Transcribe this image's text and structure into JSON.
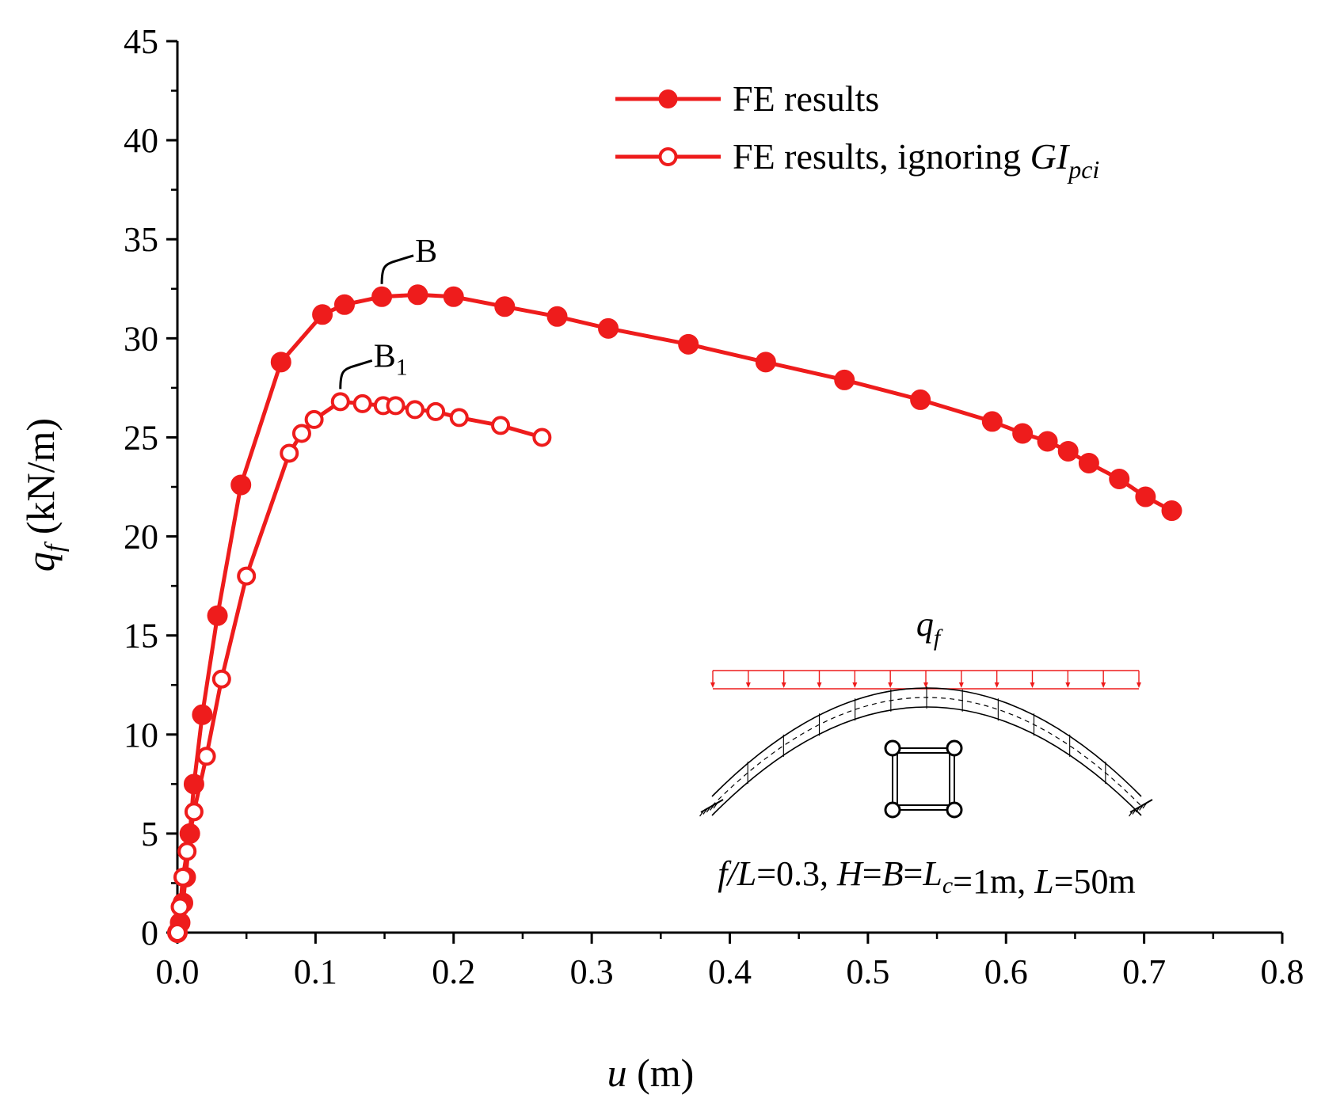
{
  "chart_data": {
    "type": "line",
    "xlabel": {
      "var": "u",
      "unit": " (m)"
    },
    "ylabel": {
      "var": "q",
      "sub": "f",
      "unit": "(kN/m)"
    },
    "xlim": [
      0,
      0.8
    ],
    "ylim": [
      0,
      45
    ],
    "xticks": [
      "0.0",
      "0.1",
      "0.2",
      "0.3",
      "0.4",
      "0.5",
      "0.6",
      "0.7",
      "0.8"
    ],
    "yticks": [
      "0",
      "5",
      "10",
      "15",
      "20",
      "25",
      "30",
      "35",
      "40",
      "45"
    ],
    "xtick_values": [
      0,
      0.1,
      0.2,
      0.3,
      0.4,
      0.5,
      0.6,
      0.7,
      0.8
    ],
    "ytick_values": [
      0,
      5,
      10,
      15,
      20,
      25,
      30,
      35,
      40,
      45
    ],
    "series": [
      {
        "name": "FE results",
        "marker": "filled-circle",
        "color": "#ee1c1c",
        "x": [
          0,
          0.002,
          0.004,
          0.006,
          0.009,
          0.012,
          0.018,
          0.029,
          0.046,
          0.075,
          0.105,
          0.121,
          0.148,
          0.174,
          0.2,
          0.237,
          0.275,
          0.312,
          0.37,
          0.426,
          0.483,
          0.538,
          0.59,
          0.612,
          0.63,
          0.645,
          0.66,
          0.682,
          0.701,
          0.72
        ],
        "y": [
          0,
          0.5,
          1.5,
          2.8,
          5.0,
          7.5,
          11.0,
          16.0,
          22.6,
          28.8,
          31.2,
          31.7,
          32.1,
          32.2,
          32.1,
          31.6,
          31.1,
          30.5,
          29.7,
          28.8,
          27.9,
          26.9,
          25.8,
          25.2,
          24.8,
          24.3,
          23.7,
          22.9,
          22.0,
          21.3
        ]
      },
      {
        "name": "FE results, ignoring ",
        "name_italic": "GI",
        "name_sub": "pci",
        "marker": "open-circle",
        "color": "#ee1c1c",
        "x": [
          0,
          0.002,
          0.004,
          0.007,
          0.012,
          0.021,
          0.032,
          0.05,
          0.081,
          0.09,
          0.099,
          0.118,
          0.134,
          0.149,
          0.158,
          0.172,
          0.187,
          0.204,
          0.234,
          0.264
        ],
        "y": [
          0,
          1.3,
          2.8,
          4.1,
          6.1,
          8.9,
          12.8,
          18.0,
          24.2,
          25.2,
          25.9,
          26.8,
          26.7,
          26.6,
          26.6,
          26.4,
          26.3,
          26.0,
          25.6,
          25.0
        ]
      }
    ],
    "annotations": [
      {
        "label": "B",
        "sub": "",
        "at_x": 0.148,
        "at_y": 32.1
      },
      {
        "label": "B",
        "sub": "1",
        "at_x": 0.118,
        "at_y": 26.8
      }
    ],
    "inset": {
      "load_label": "q",
      "load_sub": "f",
      "caption": [
        {
          "t": "f/L",
          "i": true
        },
        {
          "t": "=0.3, ",
          "i": false
        },
        {
          "t": "H",
          "i": true
        },
        {
          "t": "=",
          "i": false
        },
        {
          "t": "B",
          "i": true
        },
        {
          "t": "=",
          "i": false
        },
        {
          "t": "L",
          "i": true
        },
        {
          "t": "c",
          "i": true,
          "sub": true
        },
        {
          "t": "=1m, ",
          "i": false
        },
        {
          "t": "L",
          "i": true
        },
        {
          "t": "=50m",
          "i": false
        }
      ]
    }
  }
}
